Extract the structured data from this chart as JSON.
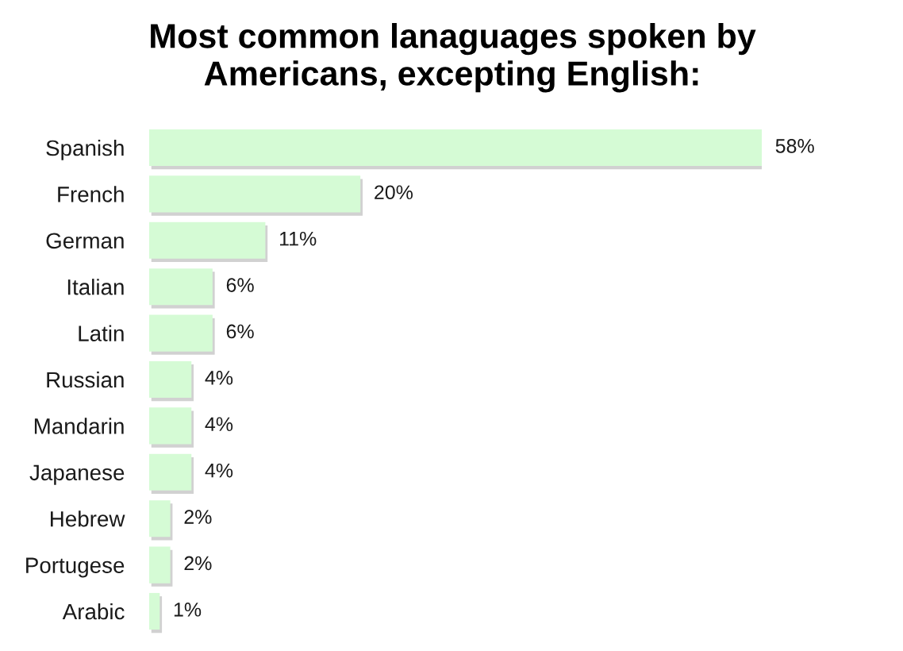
{
  "chart_data": {
    "type": "bar",
    "orientation": "horizontal",
    "title": "Most common lanaguages spoken by\nAmericans, excepting English:",
    "categories": [
      "Spanish",
      "French",
      "German",
      "Italian",
      "Latin",
      "Russian",
      "Mandarin",
      "Japanese",
      "Hebrew",
      "Portugese",
      "Arabic"
    ],
    "values": [
      58,
      20,
      11,
      6,
      6,
      4,
      4,
      4,
      2,
      2,
      1
    ],
    "value_labels": [
      "58%",
      "20%",
      "11%",
      "6%",
      "6%",
      "4%",
      "4%",
      "4%",
      "2%",
      "2%",
      "1%"
    ],
    "color": "#d5fbd5",
    "tick_labels": "y"
  }
}
